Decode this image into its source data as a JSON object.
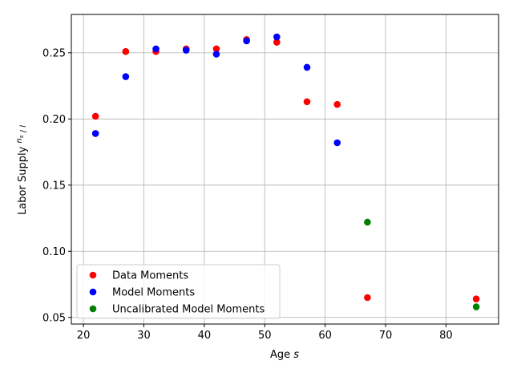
{
  "chart_data": {
    "type": "scatter",
    "xlabel": "Age s",
    "ylabel": "Labor Supply n_s / l",
    "xlim": [
      18,
      88.7
    ],
    "ylim": [
      0.045,
      0.279
    ],
    "xticks": [
      20,
      30,
      40,
      50,
      60,
      70,
      80
    ],
    "xtick_labels": [
      "20",
      "30",
      "40",
      "50",
      "60",
      "70",
      "80"
    ],
    "yticks": [
      0.05,
      0.1,
      0.15,
      0.2,
      0.25
    ],
    "ytick_labels": [
      "0.05",
      "0.10",
      "0.15",
      "0.20",
      "0.25"
    ],
    "grid": true,
    "legend_position": "lower-left",
    "series": [
      {
        "name": "Data Moments",
        "color": "#ff0000",
        "x": [
          22,
          27,
          32,
          37,
          42,
          47,
          52,
          57,
          62,
          67,
          85
        ],
        "y": [
          0.202,
          0.251,
          0.251,
          0.253,
          0.253,
          0.26,
          0.258,
          0.213,
          0.211,
          0.065,
          0.064
        ]
      },
      {
        "name": "Model Moments",
        "color": "#0000ff",
        "x": [
          22,
          27,
          32,
          37,
          42,
          47,
          52,
          57,
          62
        ],
        "y": [
          0.189,
          0.232,
          0.253,
          0.252,
          0.249,
          0.259,
          0.262,
          0.239,
          0.182
        ]
      },
      {
        "name": "Uncalibrated Model Moments",
        "color": "#008000",
        "x": [
          67,
          85
        ],
        "y": [
          0.122,
          0.058
        ]
      }
    ]
  }
}
